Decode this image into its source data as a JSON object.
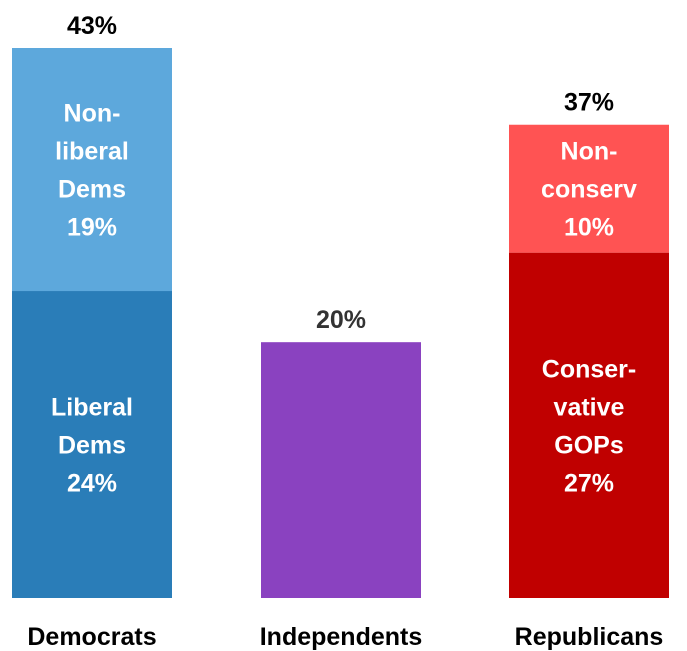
{
  "chart_data": {
    "type": "bar",
    "stacked": true,
    "categories": [
      "Democrats",
      "Independents",
      "Republicans"
    ],
    "ylim": [
      0,
      43
    ],
    "grid": false,
    "bars": [
      {
        "category": "Democrats",
        "total_label": "43%",
        "segments": [
          {
            "value": 24,
            "label_lines": [
              "Liberal",
              "Dems",
              "24%"
            ],
            "color": "#2A7DB8"
          },
          {
            "value": 19,
            "label_lines": [
              "Non-",
              "liberal",
              "Dems",
              "19%"
            ],
            "color": "#5DA8DC"
          }
        ]
      },
      {
        "category": "Independents",
        "total_label": "20%",
        "segments": [
          {
            "value": 20,
            "label_lines": [],
            "color": "#8A42C0"
          }
        ]
      },
      {
        "category": "Republicans",
        "total_label": "37%",
        "segments": [
          {
            "value": 27,
            "label_lines": [
              "Conser-",
              "vative",
              "GOPs",
              "27%"
            ],
            "color": "#C00000"
          },
          {
            "value": 10,
            "label_lines": [
              "Non-",
              "conserv",
              "10%"
            ],
            "color": "#FF5353"
          }
        ]
      }
    ]
  }
}
